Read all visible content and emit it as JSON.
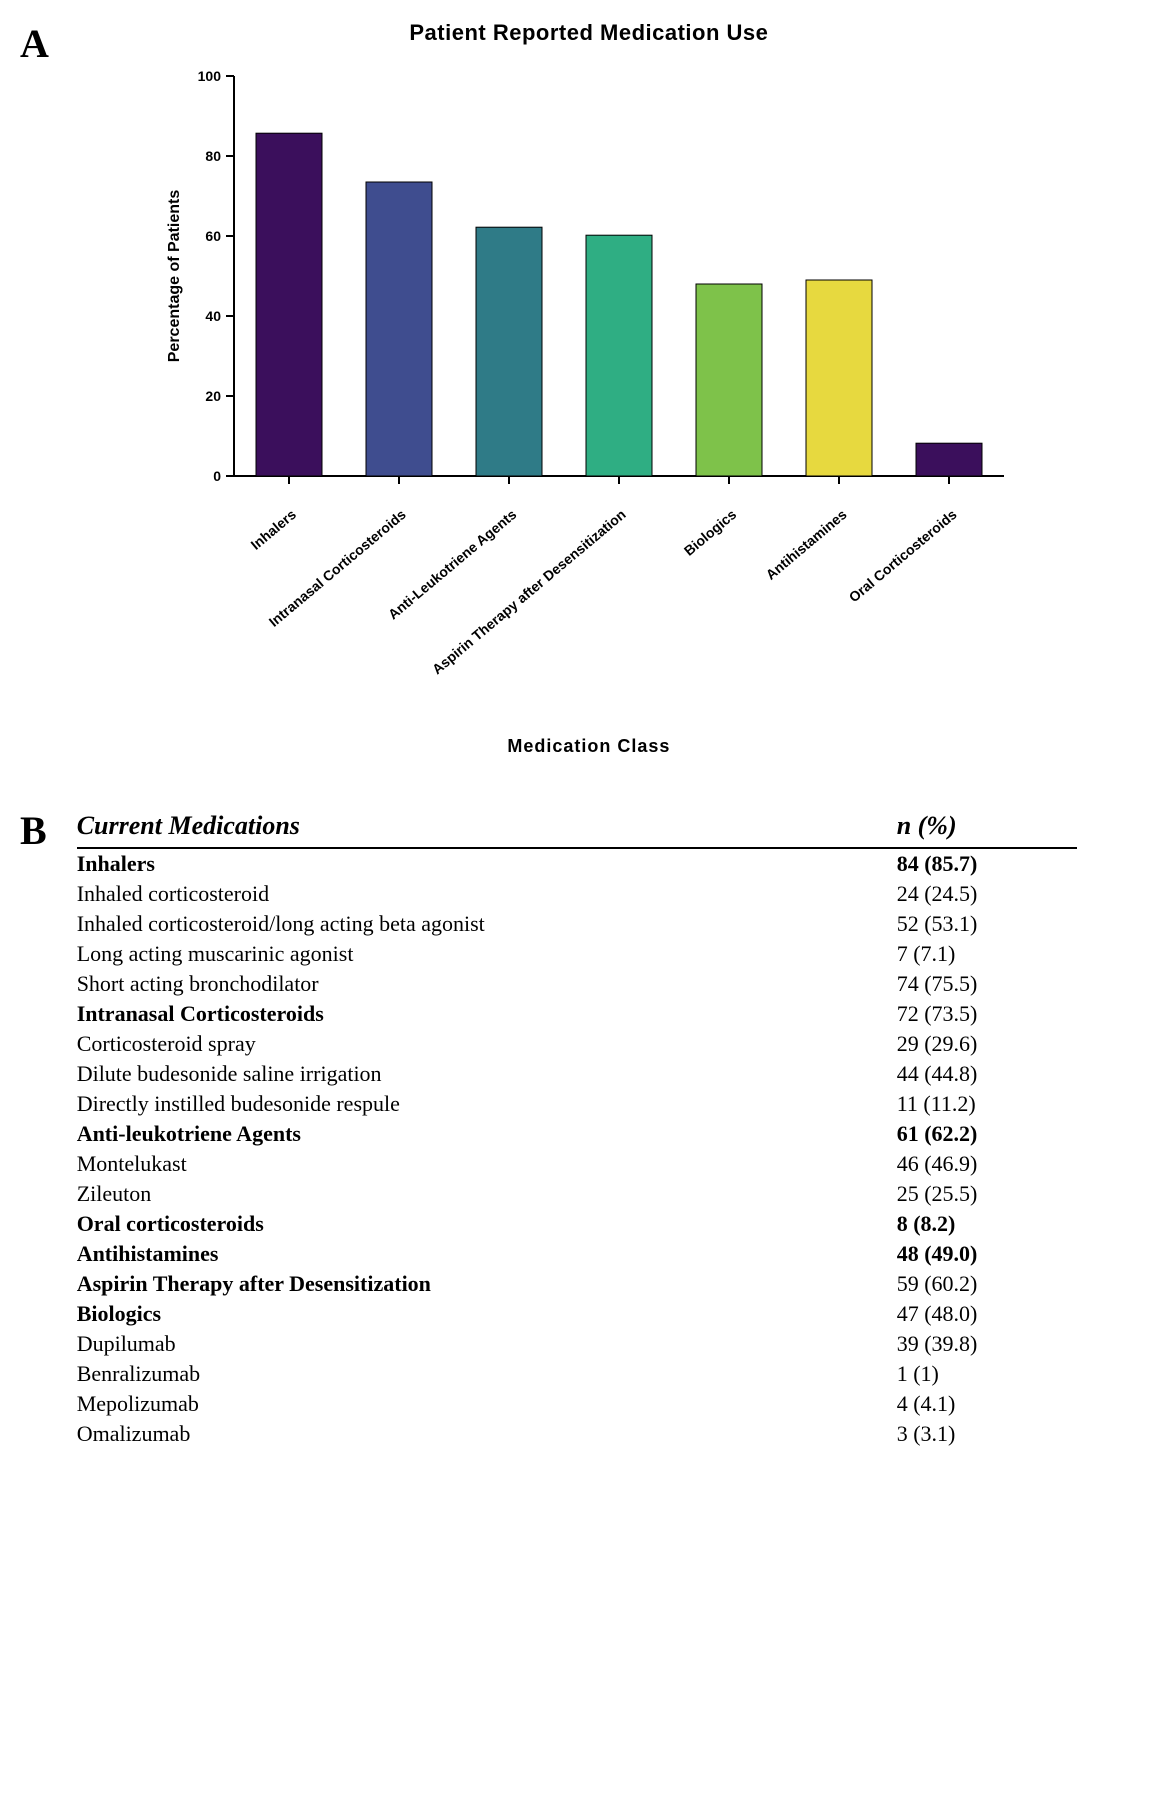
{
  "panelA": {
    "label": "A",
    "chart": {
      "type": "bar",
      "title": "Patient Reported Medication Use",
      "ylabel": "Percentage of Patients",
      "xlabel": "Medication Class",
      "ylim": [
        0,
        100
      ],
      "ytick_step": 20,
      "yticks": [
        0,
        20,
        40,
        60,
        80,
        100
      ],
      "yticks_minor_label": "100",
      "background_color": "#ffffff",
      "axis_color": "#000000",
      "axis_width": 2,
      "tick_length": 8,
      "bar_width_ratio": 0.6,
      "categories": [
        "Inhalers",
        "Intranasal Corticosteroids",
        "Anti-Leukotriene Agents",
        "Aspirin Therapy after Desensitization",
        "Biologics",
        "Antihistamines",
        "Oral Corticosteroids"
      ],
      "values": [
        85.7,
        73.5,
        62.2,
        60.2,
        48.0,
        49.0,
        8.2
      ],
      "bar_colors": [
        "#3b0f5c",
        "#3f4d8f",
        "#2f7b87",
        "#2fae83",
        "#7ec24a",
        "#e7d93f",
        "#3b0f5c"
      ],
      "bar_border_color": "#000000",
      "bar_border_width": 1,
      "title_fontsize": 22,
      "label_fontsize": 16,
      "tick_fontsize": 14
    }
  },
  "panelB": {
    "label": "B",
    "table": {
      "header_left": "Current Medications",
      "header_right": "n (%)",
      "rows": [
        {
          "level": "cat",
          "name": "Inhalers",
          "value": "84 (85.7)",
          "bold": true
        },
        {
          "level": "sub",
          "name": "Inhaled corticosteroid",
          "value": "24 (24.5)"
        },
        {
          "level": "sub",
          "name": "Inhaled corticosteroid/long acting beta agonist",
          "value": "52 (53.1)"
        },
        {
          "level": "sub",
          "name": "Long acting muscarinic agonist",
          "value": "7 (7.1)"
        },
        {
          "level": "sub",
          "name": "Short acting bronchodilator",
          "value": "74 (75.5)"
        },
        {
          "level": "cat",
          "name": "Intranasal Corticosteroids",
          "value": "72 (73.5)",
          "bold": false
        },
        {
          "level": "sub",
          "name": "Corticosteroid spray",
          "value": "29 (29.6)"
        },
        {
          "level": "sub",
          "name": "Dilute budesonide saline irrigation",
          "value": "44 (44.8)"
        },
        {
          "level": "sub",
          "name": "Directly instilled budesonide respule",
          "value": "11 (11.2)"
        },
        {
          "level": "cat",
          "name": "Anti-leukotriene Agents",
          "value": "61 (62.2)",
          "bold": true
        },
        {
          "level": "sub",
          "name": "Montelukast",
          "value": "46 (46.9)"
        },
        {
          "level": "sub",
          "name": "Zileuton",
          "value": "25 (25.5)"
        },
        {
          "level": "cat",
          "name": "Oral corticosteroids",
          "value": "8 (8.2)",
          "bold": true
        },
        {
          "level": "cat",
          "name": "Antihistamines",
          "value": "48 (49.0)",
          "bold": true
        },
        {
          "level": "cat",
          "name": "Aspirin Therapy after Desensitization",
          "value": "59 (60.2)",
          "bold": false
        },
        {
          "level": "cat",
          "name": "Biologics",
          "value": "47 (48.0)",
          "bold": false
        },
        {
          "level": "sub",
          "name": "Dupilumab",
          "value": "39 (39.8)"
        },
        {
          "level": "sub",
          "name": "Benralizumab",
          "value": "1 (1)"
        },
        {
          "level": "sub",
          "name": "Mepolizumab",
          "value": "4 (4.1)"
        },
        {
          "level": "sub",
          "name": "Omalizumab",
          "value": "3 (3.1)"
        }
      ]
    }
  }
}
